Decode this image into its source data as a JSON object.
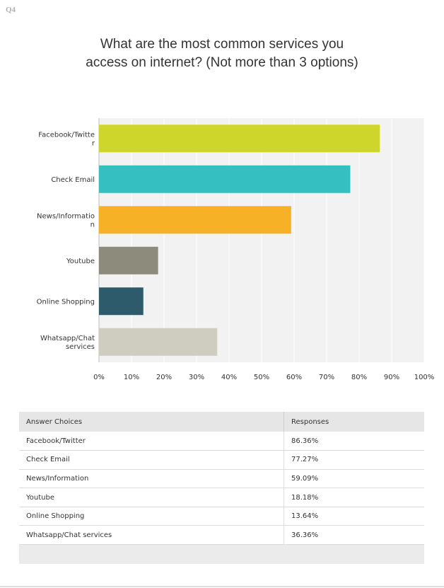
{
  "question_label": "Q4",
  "chart_data": {
    "type": "bar",
    "orientation": "horizontal",
    "title": "What are the most common services you access on internet? (Not more than 3 options)",
    "categories": [
      "Facebook/Twitter",
      "Check Email",
      "News/Information",
      "Youtube",
      "Online Shopping",
      "Whatsapp/Chat services"
    ],
    "category_labels": [
      [
        "Facebook/Twitte",
        "r"
      ],
      [
        "Check Email"
      ],
      [
        "News/Informatio",
        "n"
      ],
      [
        "Youtube"
      ],
      [
        "Online Shopping"
      ],
      [
        "Whatsapp/Chat",
        "services"
      ]
    ],
    "values": [
      86.36,
      77.27,
      59.09,
      18.18,
      13.64,
      36.36
    ],
    "colors": [
      "#cfd62b",
      "#35bfc0",
      "#f7b126",
      "#8c8b7c",
      "#2d5b6b",
      "#cfcdbf"
    ],
    "xlim": [
      0,
      100
    ],
    "xticks": [
      "0%",
      "10%",
      "20%",
      "30%",
      "40%",
      "50%",
      "60%",
      "70%",
      "80%",
      "90%",
      "100%"
    ],
    "grid": true,
    "plot_background": "#f2f2f2"
  },
  "table": {
    "headers": [
      "Answer Choices",
      "Responses"
    ],
    "rows": [
      [
        "Facebook/Twitter",
        "86.36%"
      ],
      [
        "Check Email",
        "77.27%"
      ],
      [
        "News/Information",
        "59.09%"
      ],
      [
        "Youtube",
        "18.18%"
      ],
      [
        "Online Shopping",
        "13.64%"
      ],
      [
        "Whatsapp/Chat services",
        "36.36%"
      ]
    ]
  }
}
